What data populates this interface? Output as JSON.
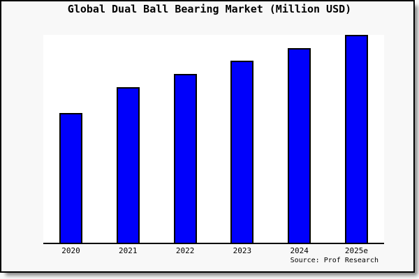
{
  "window": {
    "background": "#f8f8f8",
    "frame_border_color": "#000000"
  },
  "title": "Global Dual Ball Bearing Market (Million USD)",
  "source_credit": "Source: Prof Research",
  "chart_data": {
    "type": "bar",
    "title": "Global Dual Ball Bearing Market (Million USD)",
    "categories": [
      "2020",
      "2021",
      "2022",
      "2023",
      "2024",
      "2025e"
    ],
    "values": [
      62.7,
      75.0,
      81.3,
      87.7,
      93.7,
      100.0
    ],
    "values_unit": "relative bar height, % of tallest (2025e) bar; chart displays no numeric y-axis",
    "xlabel": "",
    "ylabel": "",
    "ylim": [
      0,
      100
    ],
    "grid": false,
    "legend": false,
    "y_axis_labels_visible": false,
    "bar_fill": "#0000fb",
    "bar_edge": "#000000",
    "plot_background": "#ffffff",
    "page_background": "#f8f8f8",
    "axis_color": "#000000",
    "source": "Source: Prof Research"
  }
}
